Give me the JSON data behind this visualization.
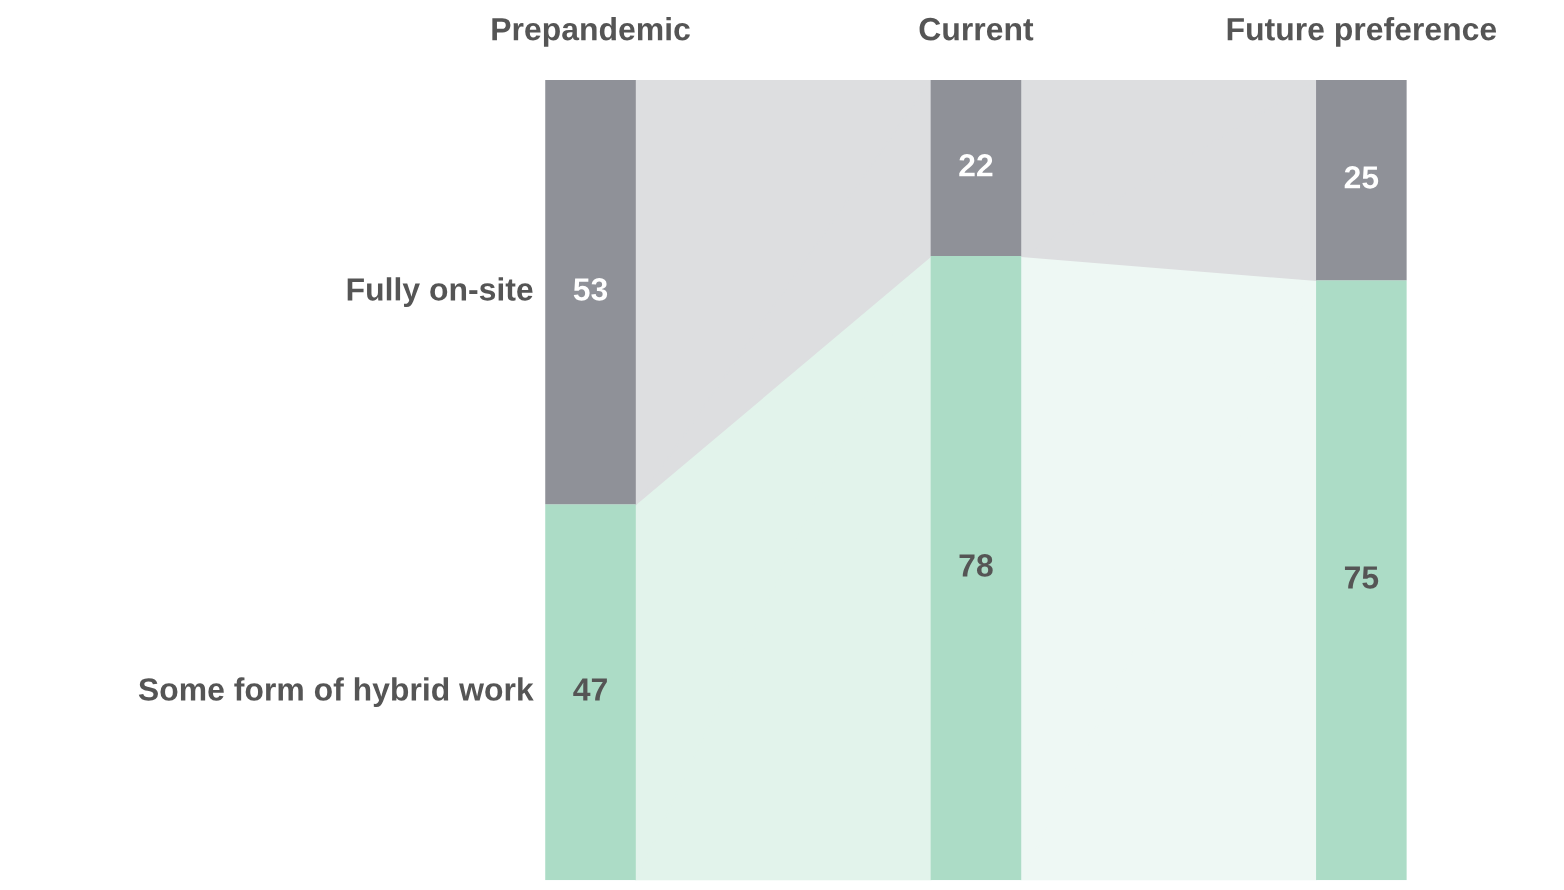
{
  "chart_data": {
    "type": "bar",
    "stacked": true,
    "categories": [
      "Prepandemic",
      "Current",
      "Future preference"
    ],
    "series": [
      {
        "name": "Some form of hybrid work",
        "color": "#acdcc6",
        "values": [
          47,
          78,
          75
        ]
      },
      {
        "name": "Fully on-site",
        "color": "#8f9198",
        "values": [
          53,
          22,
          25
        ]
      }
    ],
    "data_labels": true,
    "grid": false,
    "legend": false
  }
}
